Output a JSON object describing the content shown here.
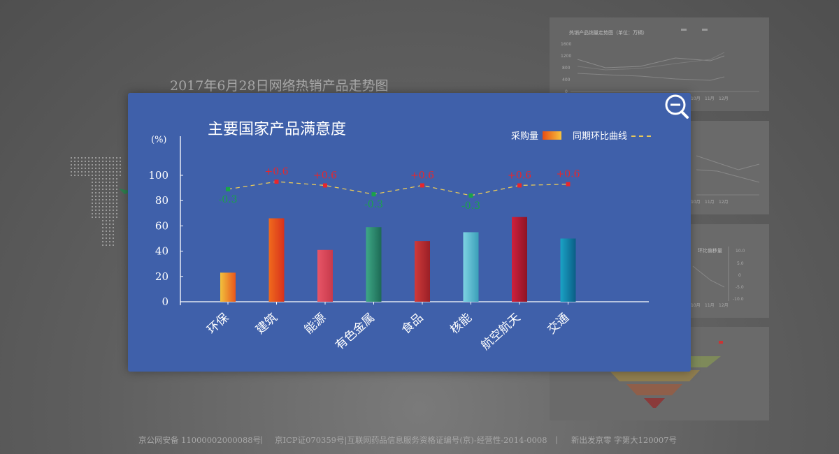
{
  "background": {
    "title": "2017年6月28日网络热销产品走势图",
    "panel_title": "热销产品销量走势图（单位：万辆）",
    "panel_yticks": [
      "1600",
      "1200",
      "800",
      "400",
      "0"
    ],
    "panel_xticks": [
      "10月",
      "11月",
      "12月"
    ],
    "panel_right_title": "环比偏移量",
    "panel_right_ticks": [
      "10.0",
      "5.0",
      "0",
      "-5.0",
      "-10.0"
    ]
  },
  "modal": {
    "title": "主要国家产品满意度",
    "y_unit": "(%)",
    "legend": {
      "bar_label": "采购量",
      "line_label": "同期环比曲线"
    },
    "zoom_icon": "zoom-out-icon"
  },
  "chart_data": {
    "type": "bar",
    "title": "主要国家产品满意度",
    "ylabel": "(%)",
    "ylim": [
      0,
      100
    ],
    "yticks": [
      0,
      20,
      40,
      60,
      80,
      100
    ],
    "categories": [
      "环保",
      "建筑",
      "能源",
      "有色金属",
      "食品",
      "核能",
      "航空航天",
      "交通"
    ],
    "series": [
      {
        "name": "采购量",
        "type": "bar",
        "values": [
          23,
          66,
          41,
          59,
          48,
          55,
          67,
          50
        ]
      },
      {
        "name": "同期环比曲线",
        "type": "line",
        "values": [
          89,
          95,
          92,
          85,
          92,
          84,
          92,
          93
        ]
      }
    ],
    "line_labels": [
      "-0.3",
      "+0.6",
      "+0.6",
      "-0.3",
      "+0.6",
      "-0.3",
      "+0.6",
      "+0.6"
    ],
    "bar_gradients": [
      [
        "#f2c13c",
        "#e8561c"
      ],
      [
        "#f06a1c",
        "#d8321c"
      ],
      [
        "#e85567",
        "#c73a4b"
      ],
      [
        "#3ea886",
        "#1d6a55"
      ],
      [
        "#d03a3a",
        "#9a1f26"
      ],
      [
        "#7ed3e3",
        "#3b9fb8"
      ],
      [
        "#d0203c",
        "#8c1426"
      ],
      [
        "#1aa3c6",
        "#0b5e86"
      ]
    ],
    "colors": {
      "positive": "#e8262c",
      "negative": "#1aa34a",
      "line": "#e8c95a",
      "axis": "#ffffff"
    }
  },
  "footer": {
    "items": [
      "京公网安备 11000002000088号",
      "|",
      "京ICP证070359号|互联网药品信息服务资格证编号(京)-经营性-2014-0008",
      "|",
      "新出发京零 字第大120007号"
    ]
  }
}
